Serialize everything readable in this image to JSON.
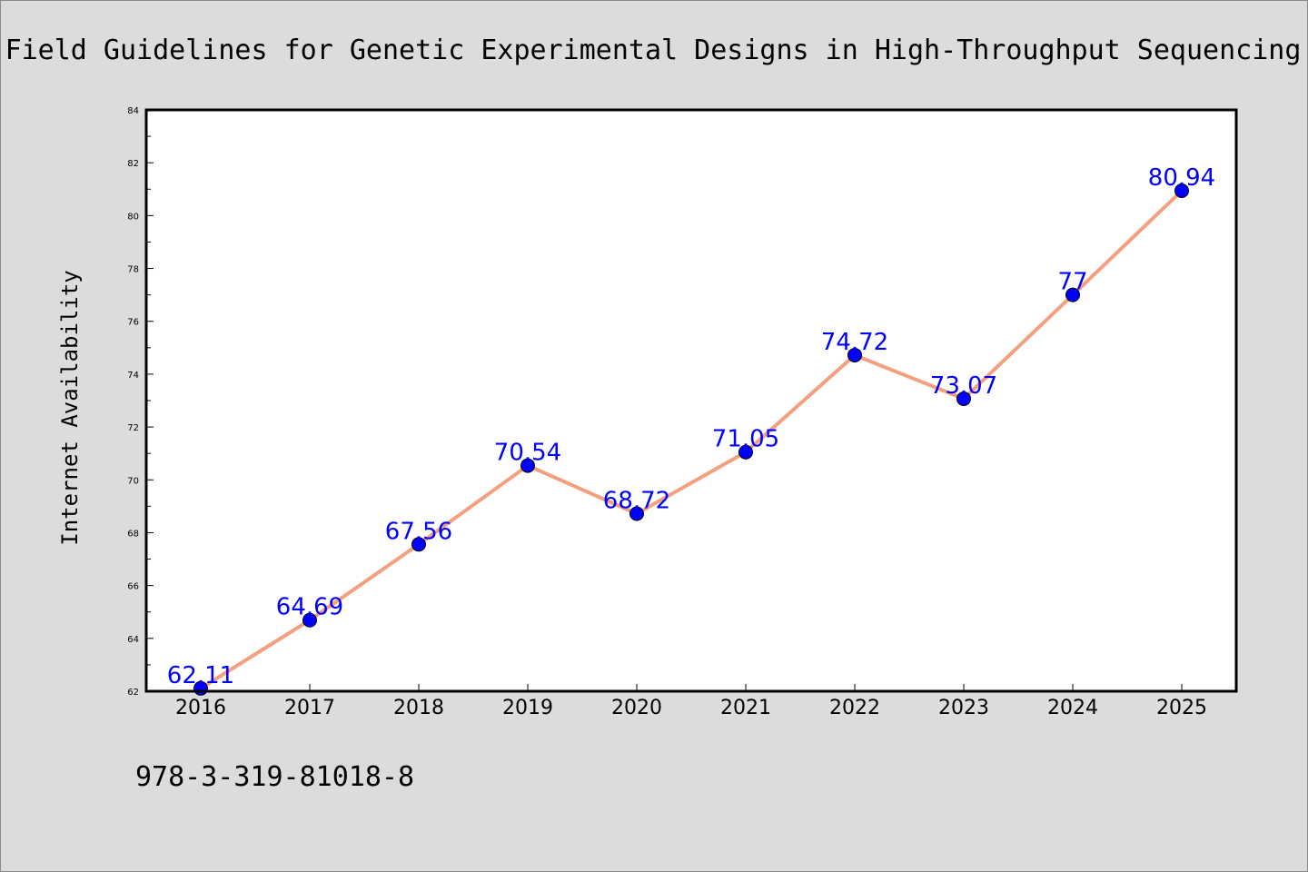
{
  "chart_data": {
    "type": "line",
    "title": "Field Guidelines for Genetic Experimental Designs in High-Throughput Sequencing",
    "xlabel": "",
    "ylabel": "Internet Availability",
    "x": [
      "2016",
      "2017",
      "2018",
      "2019",
      "2020",
      "2021",
      "2022",
      "2023",
      "2024",
      "2025"
    ],
    "series": [
      {
        "values": [
          62.11,
          64.69,
          67.56,
          70.54,
          68.72,
          71.05,
          74.72,
          73.07,
          77,
          80.94
        ],
        "labels": [
          "62.11",
          "64.69",
          "67.56",
          "70.54",
          "68.72",
          "71.05",
          "74.72",
          "73.07",
          "77",
          "80.94"
        ],
        "line_color": "#f4a07f",
        "marker_color": "#0000ff"
      }
    ],
    "ylim": [
      62,
      84
    ],
    "yticks": [
      "62",
      "64",
      "66",
      "68",
      "70",
      "72",
      "74",
      "76",
      "78",
      "80",
      "82",
      "84"
    ],
    "grid": false,
    "legend": "none"
  },
  "footnote": "978-3-319-81018-8",
  "colors": {
    "background": "#dcdcdc",
    "plot_area": "#ffffff",
    "line": "#f4a07f",
    "marker": "#0000ff",
    "data_label": "#0000ff"
  }
}
